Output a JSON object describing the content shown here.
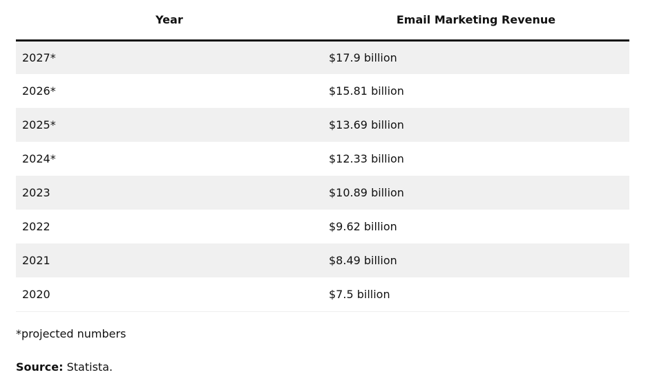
{
  "table": {
    "headers": {
      "year": "Year",
      "revenue": "Email Marketing Revenue"
    },
    "rows": [
      {
        "year": "2027*",
        "revenue": "$17.9 billion"
      },
      {
        "year": "2026*",
        "revenue": "$15.81 billion"
      },
      {
        "year": "2025*",
        "revenue": "$13.69 billion"
      },
      {
        "year": "2024*",
        "revenue": "$12.33 billion"
      },
      {
        "year": "2023",
        "revenue": "$10.89 billion"
      },
      {
        "year": "2022",
        "revenue": "$9.62 billion"
      },
      {
        "year": "2021",
        "revenue": "$8.49 billion"
      },
      {
        "year": "2020",
        "revenue": "$7.5 billion"
      }
    ]
  },
  "footnote": "*projected numbers",
  "source": {
    "label": "Source:",
    "text": "Statista."
  }
}
